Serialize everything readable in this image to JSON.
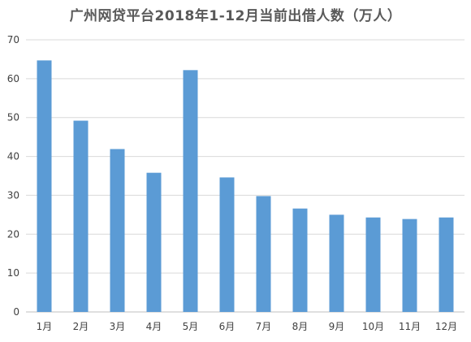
{
  "chart_data": {
    "type": "bar",
    "title": "广州网贷平台2018年1-12月当前出借人数（万人）",
    "xlabel": "",
    "ylabel": "",
    "categories": [
      "1月",
      "2月",
      "3月",
      "4月",
      "5月",
      "6月",
      "7月",
      "8月",
      "9月",
      "10月",
      "11月",
      "12月"
    ],
    "values": [
      64.7,
      49.2,
      41.9,
      35.8,
      62.2,
      34.6,
      29.8,
      26.6,
      25.0,
      24.3,
      23.9,
      24.3
    ],
    "ylim": [
      0,
      70
    ],
    "yticks": [
      0,
      10,
      20,
      30,
      40,
      50,
      60,
      70
    ],
    "grid": true,
    "legend": "none",
    "colors": {
      "bar": "#5b9bd5",
      "grid": "#d9d9d9",
      "axis": "#bfbfbf",
      "title": "#595959",
      "tick": "#404040"
    }
  }
}
